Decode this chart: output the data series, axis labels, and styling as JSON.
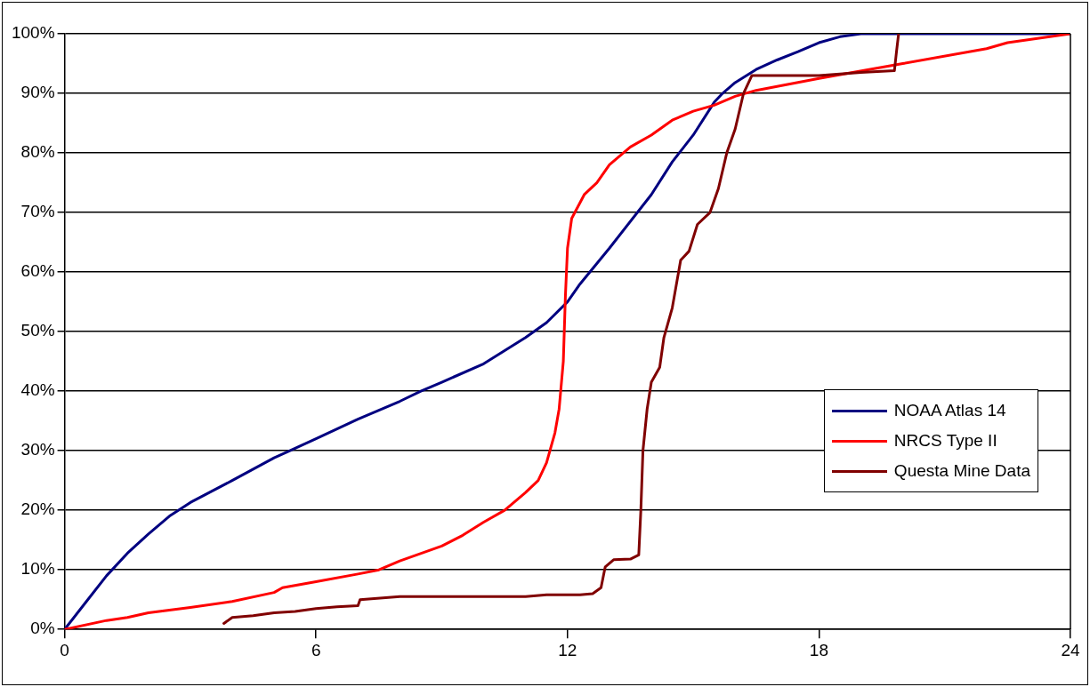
{
  "chart_data": {
    "type": "line",
    "xlim": [
      0,
      24
    ],
    "xticks": [
      0,
      6,
      12,
      18,
      24
    ],
    "ylim": [
      0,
      100
    ],
    "yticks": [
      {
        "value": 0,
        "label": "0%"
      },
      {
        "value": 10,
        "label": "10%"
      },
      {
        "value": 20,
        "label": "20%"
      },
      {
        "value": 30,
        "label": "30%"
      },
      {
        "value": 40,
        "label": "40%"
      },
      {
        "value": 50,
        "label": "50%"
      },
      {
        "value": 60,
        "label": "60%"
      },
      {
        "value": 70,
        "label": "70%"
      },
      {
        "value": 80,
        "label": "80%"
      },
      {
        "value": 90,
        "label": "90%"
      },
      {
        "value": 100,
        "label": "100%"
      }
    ],
    "grid": "y",
    "legend": "right",
    "marker": "none",
    "line_style": "solid",
    "series": [
      {
        "name": "NOAA Atlas 14",
        "color": "#000080",
        "x": [
          0,
          0.5,
          1,
          1.5,
          2,
          2.5,
          3,
          4,
          5,
          6,
          7,
          8,
          8.5,
          9,
          10,
          11,
          11.5,
          12,
          12.3,
          13,
          14,
          14.5,
          15,
          15.5,
          15.7,
          16,
          16.5,
          17,
          17.5,
          18,
          18.5,
          19,
          24
        ],
        "values": [
          0,
          4.5,
          9,
          12.8,
          16,
          19,
          21.3,
          25,
          28.8,
          32,
          35.3,
          38.3,
          40,
          41.5,
          44.6,
          49,
          51.5,
          55,
          58,
          64,
          73,
          78.5,
          83,
          88.5,
          90,
          91.8,
          94,
          95.6,
          97,
          98.5,
          99.5,
          100,
          100
        ]
      },
      {
        "name": "NRCS Type II",
        "color": "#ff0000",
        "x": [
          0,
          1,
          1.5,
          2,
          3,
          4,
          5,
          5.2,
          6,
          7,
          7.5,
          8,
          9,
          9.5,
          10,
          10.5,
          11,
          11.3,
          11.5,
          11.7,
          11.8,
          11.9,
          11.95,
          12,
          12.1,
          12.4,
          12.7,
          13,
          13.5,
          14,
          14.5,
          15,
          15.5,
          16,
          16.5,
          18,
          20,
          22,
          22.5,
          24
        ],
        "values": [
          0,
          1.5,
          2,
          2.8,
          3.7,
          4.7,
          6.2,
          7,
          8,
          9.3,
          10,
          11.5,
          14,
          15.8,
          18,
          20,
          23,
          25,
          28,
          33,
          37,
          45,
          56,
          64,
          69,
          73,
          75,
          78,
          81,
          83,
          85.5,
          87,
          88,
          89.5,
          90.5,
          92.5,
          95,
          97.5,
          98.5,
          100
        ]
      },
      {
        "name": "Questa Mine Data",
        "color": "#800000",
        "x": [
          3.8,
          4,
          4.5,
          5,
          5.5,
          6,
          6.5,
          7,
          7.05,
          8,
          11,
          11.5,
          12.3,
          12.6,
          12.8,
          12.9,
          13.1,
          13.5,
          13.7,
          13.75,
          13.8,
          13.9,
          14,
          14.2,
          14.3,
          14.5,
          14.7,
          14.9,
          15.1,
          15.4,
          15.6,
          15.8,
          16,
          16.2,
          16.4,
          17,
          18,
          19,
          19.8,
          19.85,
          19.9
        ],
        "values": [
          1,
          2,
          2.3,
          2.8,
          3,
          3.5,
          3.8,
          4,
          5,
          5.5,
          5.5,
          5.8,
          5.8,
          6,
          7,
          10.5,
          11.7,
          11.8,
          12.5,
          20,
          30,
          37,
          41.5,
          44,
          49,
          54,
          62,
          63.5,
          68,
          70,
          74,
          80,
          84,
          90,
          93,
          93,
          93,
          93.5,
          93.8,
          97,
          100
        ]
      }
    ]
  }
}
